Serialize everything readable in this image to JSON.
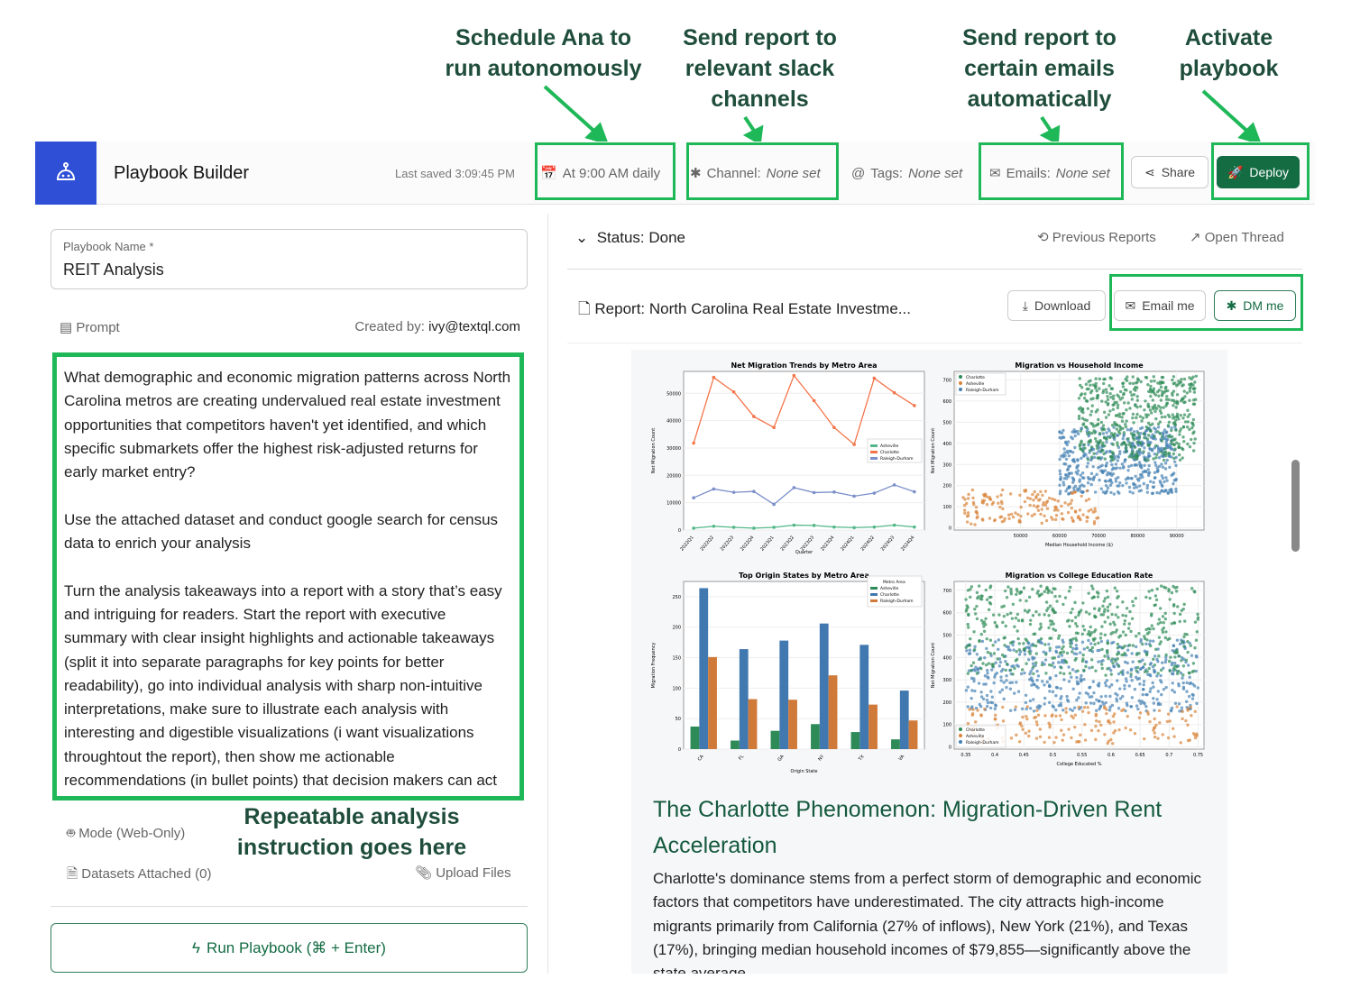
{
  "annotations": [
    "Schedule Ana to\nrun autonomously",
    "Send report to\nrelevant slack\nchannels",
    "Send report to\ncertain emails\nautomatically",
    "Activate\nplaybook",
    "Repeatable analysis\ninstruction goes here"
  ],
  "header": {
    "title": "Playbook Builder",
    "last_saved": "Last saved 3:09:45 PM",
    "schedule": "At 9:00 AM daily",
    "channel_label": "Channel:",
    "channel_value": "None set",
    "tags_label": "Tags:",
    "tags_value": "None set",
    "emails_label": "Emails:",
    "emails_value": "None set",
    "share": "Share",
    "deploy": "Deploy"
  },
  "left": {
    "name_label": "Playbook Name *",
    "name_value": "REIT Analysis",
    "prompt_label": "Prompt",
    "created_by_label": "Created by:",
    "created_by": "ivy@textql.com",
    "prompt_text": "What demographic and economic migration patterns across North Carolina metros are creating undervalued real estate investment opportunities that competitors haven't yet identified, and which specific submarkets offer the highest risk-adjusted returns for early market entry?\n\nUse the attached dataset and conduct google search for census data to enrich your analysis\n\nTurn the analysis takeaways into a report with a story that’s easy and intriguing for readers. Start the report with executive summary with clear insight highlights and actionable takeaways (split it into separate paragraphs for key points for better readability), go into individual analysis with sharp non-intuitive interpretations, make sure to illustrate each analysis with interesting and digestible visualizations (i want visualizations throughtout the report), then show me actionable recommendations (in bullet points) that decision makers can act upon the takeaways immediately",
    "mode": "Mode (Web-Only)",
    "datasets": "Datasets Attached (0)",
    "upload": "Upload Files",
    "run": "Run Playbook (⌘ + Enter)"
  },
  "right": {
    "status": "Status: Done",
    "previous_reports": "Previous Reports",
    "open_thread": "Open Thread",
    "report_label": "Report:",
    "report_title": "North Carolina Real Estate Investme...",
    "download": "Download",
    "email_me": "Email me",
    "dm_me": "DM me",
    "section_heading": "The Charlotte Phenomenon: Migration-Driven Rent Acceleration",
    "section_body": "Charlotte's dominance stems from a perfect storm of demographic and economic factors that competitors have underestimated. The city attracts high-income migrants primarily from California (27% of inflows), New York (21%), and Texas (17%), bringing median household incomes of $79,855—significantly above the state average."
  },
  "colors": {
    "accent": "#146c43",
    "annotation": "#1fb858",
    "logo": "#2e4fd6"
  },
  "chart_data": [
    {
      "type": "line",
      "title": "Net Migration Trends by Metro Area",
      "xlabel": "Quarter",
      "ylabel": "Net Migration Count",
      "categories": [
        "2022Q1",
        "2022Q2",
        "2022Q3",
        "2022Q4",
        "2023Q1",
        "2023Q2",
        "2023Q3",
        "2023Q4",
        "2024Q1",
        "2024Q2",
        "2024Q3",
        "2024Q4"
      ],
      "ylim": [
        0,
        58000
      ],
      "yticks": [
        0,
        10000,
        20000,
        30000,
        40000,
        50000
      ],
      "legend": "center-right",
      "series": [
        {
          "name": "Asheville",
          "color": "#52b788",
          "values": [
            700,
            1400,
            1000,
            700,
            1000,
            1800,
            1700,
            1100,
            900,
            1100,
            1800,
            1100
          ]
        },
        {
          "name": "Charlotte",
          "color": "#f4744a",
          "values": [
            31800,
            55800,
            50500,
            41500,
            37500,
            56500,
            47300,
            37500,
            31300,
            55500,
            50200,
            45500
          ]
        },
        {
          "name": "Raleigh-Durham",
          "color": "#7b8fc9",
          "values": [
            11800,
            15000,
            13800,
            14100,
            9400,
            15500,
            13700,
            13900,
            12400,
            13500,
            16500,
            14000
          ]
        }
      ]
    },
    {
      "type": "scatter",
      "title": "Migration vs Household Income",
      "xlabel": "Median Household Income ($)",
      "ylabel": "Net Migration Count",
      "xlim": [
        33000,
        97000
      ],
      "ylim": [
        -10,
        740
      ],
      "xticks": [
        50000,
        60000,
        70000,
        80000,
        90000
      ],
      "yticks": [
        0,
        100,
        200,
        300,
        400,
        500,
        600,
        700
      ],
      "legend": "top-left",
      "series": [
        {
          "name": "Charlotte",
          "color": "#2e8b57",
          "x_range": [
            65000,
            95000
          ],
          "y_range": [
            320,
            720
          ]
        },
        {
          "name": "Asheville",
          "color": "#d9843b",
          "x_range": [
            35000,
            70000
          ],
          "y_range": [
            15,
            180
          ]
        },
        {
          "name": "Raleigh-Durham",
          "color": "#4682b4",
          "x_range": [
            60000,
            90000
          ],
          "y_range": [
            160,
            480
          ]
        }
      ]
    },
    {
      "type": "bar",
      "title": "Top Origin States by Metro Area",
      "xlabel": "Origin State",
      "ylabel": "Migration Frequency",
      "categories": [
        "CA",
        "FL",
        "GA",
        "NY",
        "TX",
        "VA"
      ],
      "ylim": [
        0,
        275
      ],
      "yticks": [
        0,
        50,
        100,
        150,
        200,
        250
      ],
      "legend": "top-right",
      "legend_title": "Metro Area",
      "series": [
        {
          "name": "Asheville",
          "color": "#2e8b57",
          "values": [
            37,
            14,
            30,
            41,
            28,
            16
          ]
        },
        {
          "name": "Charlotte",
          "color": "#4178b0",
          "values": [
            264,
            164,
            178,
            206,
            171,
            96
          ]
        },
        {
          "name": "Raleigh-Durham",
          "color": "#d07a3a",
          "values": [
            151,
            82,
            81,
            121,
            73,
            47
          ]
        }
      ]
    },
    {
      "type": "scatter",
      "title": "Migration vs College Education Rate",
      "xlabel": "College Educated %",
      "ylabel": "Net Migration Count",
      "xlim": [
        0.33,
        0.76
      ],
      "ylim": [
        -10,
        740
      ],
      "xticks": [
        0.35,
        0.4,
        0.45,
        0.5,
        0.55,
        0.6,
        0.65,
        0.7,
        0.75
      ],
      "yticks": [
        0,
        100,
        200,
        300,
        400,
        500,
        600,
        700
      ],
      "legend": "bottom-left",
      "series": [
        {
          "name": "Charlotte",
          "color": "#2e8b57",
          "x_range": [
            0.35,
            0.75
          ],
          "y_range": [
            320,
            720
          ]
        },
        {
          "name": "Asheville",
          "color": "#d9843b",
          "x_range": [
            0.35,
            0.75
          ],
          "y_range": [
            15,
            180
          ]
        },
        {
          "name": "Raleigh-Durham",
          "color": "#4682b4",
          "x_range": [
            0.35,
            0.75
          ],
          "y_range": [
            160,
            480
          ]
        }
      ]
    }
  ]
}
